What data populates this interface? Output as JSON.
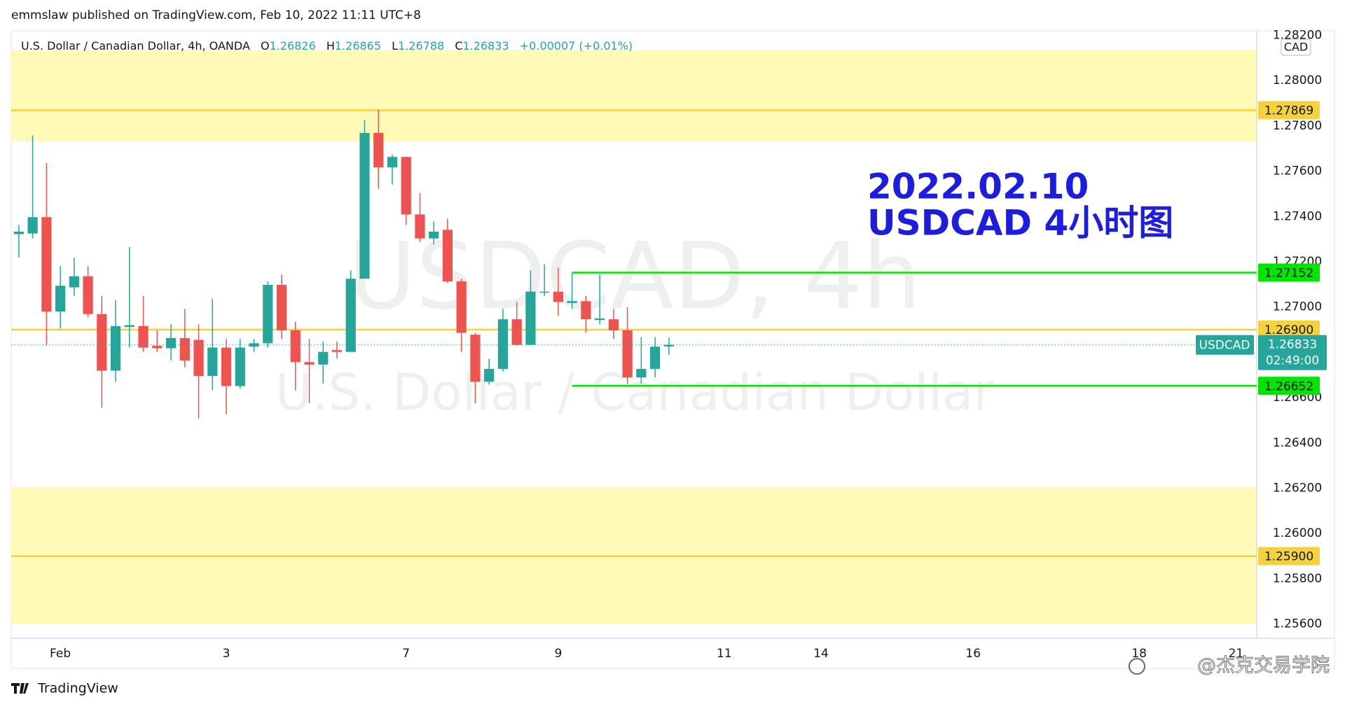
{
  "chart_data": {
    "type": "candlestick",
    "publisher": "emmslaw published on TradingView.com, Feb 10, 2022 11:11 UTC+8",
    "title": "U.S. Dollar / Canadian Dollar, 4h, OANDA",
    "legend_fields": [
      "O",
      "H",
      "L",
      "C"
    ],
    "change": "+0.00007 (+0.01%)",
    "watermark": [
      "USDCAD, 4h",
      "U.S. Dollar / Canadian Dollar"
    ],
    "annotation": [
      "2022.02.10",
      "USDCAD 4小时图"
    ],
    "symbol": "USDCAD",
    "countdown": "02:49:00",
    "currency": "CAD",
    "footer": [
      "TradingView",
      "@杰克交易学院"
    ],
    "up_color": "#26a69a",
    "down_color": "#ef5350",
    "grid": false,
    "categories": [
      null,
      null,
      null,
      "Feb",
      null,
      null,
      null,
      null,
      null,
      null,
      null,
      null,
      null,
      null,
      null,
      "3",
      null,
      null,
      null,
      null,
      null,
      null,
      null,
      null,
      null,
      null,
      null,
      null,
      "7",
      null,
      null,
      null,
      null,
      null,
      null,
      null,
      null,
      null,
      null,
      "9",
      null,
      null,
      null,
      null,
      null,
      null,
      null,
      null,
      null,
      null,
      null,
      "11",
      null,
      null,
      null,
      null,
      null,
      null,
      "14",
      null,
      null,
      null,
      null,
      null,
      null,
      null,
      null,
      null,
      null,
      "16",
      null,
      null,
      null,
      null,
      null,
      null,
      null,
      null,
      null,
      null,
      null,
      "18",
      null,
      null,
      null,
      null,
      null,
      null,
      "21",
      null
    ],
    "open": [
      1.27322,
      1.27325,
      1.27397,
      1.2698,
      1.27087,
      1.27136,
      1.26969,
      1.26719,
      1.26912,
      1.26916,
      1.26829,
      1.26818,
      1.26863,
      1.26855,
      1.26696,
      1.26821,
      1.26651,
      1.26825,
      1.2684,
      1.27098,
      1.26897,
      1.26757,
      1.26746,
      1.2681,
      1.26802,
      1.27125,
      1.27769,
      1.27617,
      1.27663,
      1.27409,
      1.27303,
      1.27341,
      1.27113,
      1.26878,
      1.2667,
      1.26727,
      1.26946,
      1.26833,
      1.27064,
      1.27068,
      1.27018,
      1.27026,
      1.26943,
      1.26946,
      1.26897,
      1.26689,
      1.26727,
      1.26826,
      null,
      null,
      null,
      null,
      null,
      null,
      null,
      null,
      null,
      null,
      null,
      null,
      null,
      null,
      null,
      null,
      null,
      null,
      null,
      null,
      null,
      null,
      null,
      null,
      null,
      null,
      null,
      null,
      null,
      null,
      null,
      null,
      null,
      null,
      null,
      null,
      null,
      null,
      null,
      null,
      null,
      null
    ],
    "high": [
      1.27363,
      1.27757,
      1.27636,
      1.27181,
      1.27219,
      1.27181,
      1.27049,
      1.2703,
      1.27265,
      1.27049,
      1.26897,
      1.26924,
      1.26992,
      1.26924,
      1.27037,
      1.26859,
      1.26859,
      1.26859,
      1.27113,
      1.27143,
      1.26935,
      1.26859,
      1.26848,
      1.26848,
      1.27162,
      1.27826,
      1.27871,
      1.27674,
      1.27663,
      1.27504,
      1.27378,
      1.2739,
      1.27125,
      1.26886,
      1.26772,
      1.26992,
      1.27022,
      1.27162,
      1.27189,
      1.27174,
      1.27151,
      1.27049,
      1.27143,
      1.26992,
      1.26999,
      1.26867,
      1.26867,
      1.26865,
      null,
      null,
      null,
      null,
      null,
      null,
      null,
      null,
      null,
      null,
      null,
      null,
      null,
      null,
      null,
      null,
      null,
      null,
      null,
      null,
      null,
      null,
      null,
      null,
      null,
      null,
      null,
      null,
      null,
      null,
      null,
      null,
      null,
      null,
      null,
      null,
      null,
      null,
      null,
      null,
      null,
      null
    ],
    "low": [
      1.27219,
      1.27303,
      1.26829,
      1.26905,
      1.27049,
      1.26954,
      1.26556,
      1.2667,
      1.26821,
      1.26802,
      1.26802,
      1.26764,
      1.26734,
      1.26507,
      1.26632,
      1.26526,
      1.26639,
      1.26802,
      1.26821,
      1.26859,
      1.26632,
      1.26575,
      1.26662,
      1.26772,
      1.26802,
      1.27125,
      1.27522,
      1.27541,
      1.27363,
      1.27287,
      1.27276,
      1.27106,
      1.26802,
      1.26575,
      1.26658,
      1.26715,
      1.26829,
      1.26833,
      1.27049,
      1.26962,
      1.26992,
      1.26886,
      1.26924,
      1.26859,
      1.26658,
      1.26662,
      1.26689,
      1.26788,
      null,
      null,
      null,
      null,
      null,
      null,
      null,
      null,
      null,
      null,
      null,
      null,
      null,
      null,
      null,
      null,
      null,
      null,
      null,
      null,
      null,
      null,
      null,
      null,
      null,
      null,
      null,
      null,
      null,
      null,
      null,
      null,
      null,
      null,
      null,
      null,
      null,
      null,
      null,
      null,
      null,
      null
    ],
    "close": [
      1.27333,
      1.27397,
      1.2698,
      1.27094,
      1.27136,
      1.26969,
      1.26719,
      1.26916,
      1.2692,
      1.26821,
      1.26818,
      1.26863,
      1.26764,
      1.26696,
      1.26821,
      1.26651,
      1.26821,
      1.2684,
      1.27098,
      1.26897,
      1.26757,
      1.26746,
      1.26802,
      1.26802,
      1.27125,
      1.27769,
      1.27617,
      1.27663,
      1.27409,
      1.27303,
      1.27333,
      1.27113,
      1.26886,
      1.2667,
      1.26727,
      1.26946,
      1.26833,
      1.27068,
      1.27068,
      1.27022,
      1.27026,
      1.26946,
      1.2695,
      1.26897,
      1.26689,
      1.26727,
      1.26825,
      1.26833,
      null,
      null,
      null,
      null,
      null,
      null,
      null,
      null,
      null,
      null,
      null,
      null,
      null,
      null,
      null,
      null,
      null,
      null,
      null,
      null,
      null,
      null,
      null,
      null,
      null,
      null,
      null,
      null,
      null,
      null,
      null,
      null,
      null,
      null,
      null,
      null,
      null,
      null,
      null,
      null,
      null,
      null
    ],
    "ylim": [
      1.25537,
      1.2822
    ],
    "yticks": [
      {
        "value": 1.256,
        "label": "1.25600"
      },
      {
        "value": 1.258,
        "label": "1.25800"
      },
      {
        "value": 1.26,
        "label": "1.26000"
      },
      {
        "value": 1.262,
        "label": "1.26200"
      },
      {
        "value": 1.264,
        "label": "1.26400"
      },
      {
        "value": 1.266,
        "label": "1.26600"
      },
      {
        "value": 1.268,
        "label": "1.26800"
      },
      {
        "value": 1.27,
        "label": "1.27000"
      },
      {
        "value": 1.272,
        "label": "1.27200"
      },
      {
        "value": 1.274,
        "label": "1.27400"
      },
      {
        "value": 1.276,
        "label": "1.27600"
      },
      {
        "value": 1.278,
        "label": "1.27800"
      },
      {
        "value": 1.28,
        "label": "1.28000"
      },
      {
        "value": 1.282,
        "label": "1.28200"
      }
    ],
    "zones": [
      {
        "from": 1.27731,
        "to": 1.28136,
        "color": "#fffab8"
      },
      {
        "from": 1.256,
        "to": 1.26204,
        "color": "#fffab8"
      }
    ],
    "levels": [
      {
        "value": 1.27869,
        "color": "#f3d23c"
      },
      {
        "value": 1.269,
        "label": "1.26900",
        "color": "#f3d23c"
      },
      {
        "value": 1.259,
        "label": "1.25900",
        "color": "#f3d23c"
      },
      {
        "value": 1.27152,
        "color": "#00e600",
        "from": 40
      },
      {
        "value": 1.26652,
        "color": "#00e600",
        "from": 40
      }
    ]
  }
}
